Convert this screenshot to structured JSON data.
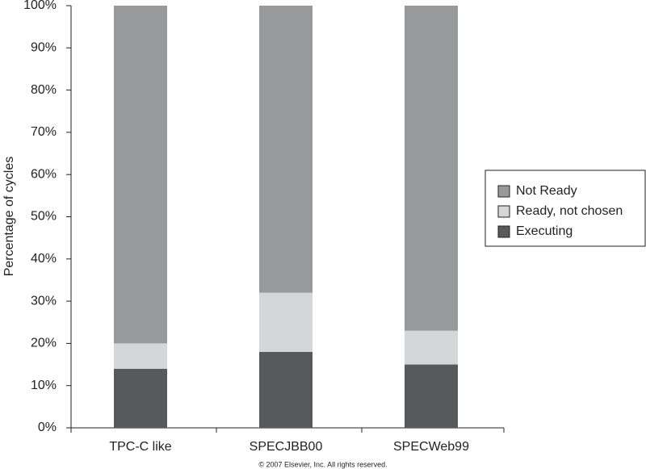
{
  "chart_data": {
    "type": "stacked_bar",
    "y_label": "Percentage of cycles",
    "categories": [
      "TPC-C like",
      "SPECJBB00",
      "SPECWeb99"
    ],
    "series": [
      {
        "name": "Not Ready",
        "color": "#98999b",
        "values": [
          80,
          68,
          77
        ]
      },
      {
        "name": "Ready, not chosen",
        "color": "#d5d6d8",
        "values": [
          6,
          14,
          8
        ]
      },
      {
        "name": "Executing",
        "color": "#58595b",
        "values": [
          14,
          18,
          15
        ]
      }
    ],
    "ylim": [
      0,
      100
    ],
    "yticks": [
      {
        "value": 0,
        "label": "0%"
      },
      {
        "value": 10,
        "label": "10%"
      },
      {
        "value": 20,
        "label": "20%"
      },
      {
        "value": 30,
        "label": "30%"
      },
      {
        "value": 40,
        "label": "40%"
      },
      {
        "value": 50,
        "label": "50%"
      },
      {
        "value": 60,
        "label": "60%"
      },
      {
        "value": 70,
        "label": "70%"
      },
      {
        "value": 80,
        "label": "80%"
      },
      {
        "value": 90,
        "label": "90%"
      },
      {
        "value": 100,
        "label": "100%"
      }
    ],
    "legend": "right",
    "copyright": "© 2007 Elsevier, Inc. All rights reserved."
  }
}
